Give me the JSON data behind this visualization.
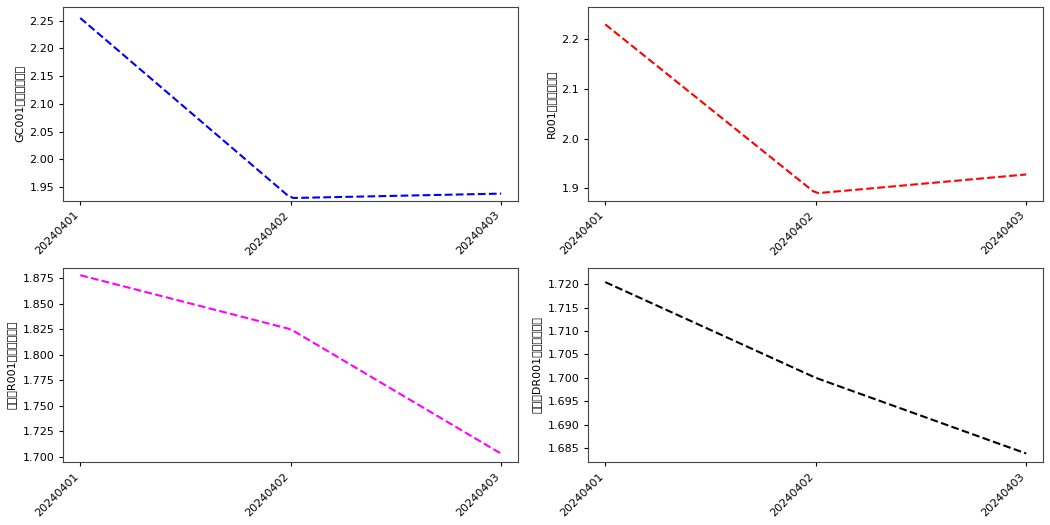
{
  "subplots": [
    {
      "ylabel": "GC001加权平均利率",
      "color": "blue",
      "x": [
        0,
        1,
        2
      ],
      "y": [
        2.255,
        1.93,
        1.938
      ],
      "ylim": [
        1.925,
        2.275
      ],
      "yticks": [
        1.95,
        2.0,
        2.05,
        2.1,
        2.15,
        2.2,
        2.25
      ]
    },
    {
      "ylabel": "R001加权平均利率",
      "color": "red",
      "x": [
        0,
        1,
        2
      ],
      "y": [
        2.23,
        1.89,
        1.928
      ],
      "ylim": [
        1.875,
        2.265
      ],
      "yticks": [
        1.9,
        2.0,
        2.1,
        2.2
      ]
    },
    {
      "ylabel": "銀行间R001加权平均利率",
      "color": "magenta",
      "x": [
        0,
        1,
        2
      ],
      "y": [
        1.878,
        1.825,
        1.703
      ],
      "ylim": [
        1.695,
        1.885
      ],
      "yticks": [
        1.7,
        1.725,
        1.75,
        1.775,
        1.8,
        1.825,
        1.85,
        1.875
      ]
    },
    {
      "ylabel": "銀行间DR001加权平均利率",
      "color": "black",
      "x": [
        0,
        1,
        2
      ],
      "y": [
        1.7205,
        1.7,
        1.6838
      ],
      "ylim": [
        1.682,
        1.7235
      ],
      "yticks": [
        1.685,
        1.69,
        1.695,
        1.7,
        1.705,
        1.71,
        1.715,
        1.72
      ]
    }
  ],
  "xtick_labels": [
    "20240401",
    "20240402",
    "20240403"
  ],
  "background_color": "#ffffff",
  "plot_bg_color": "#ffffff",
  "num_points": 80
}
